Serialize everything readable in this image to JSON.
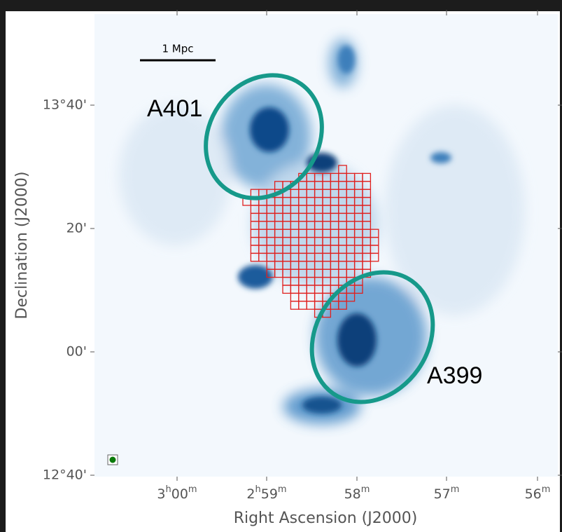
{
  "figure": {
    "scale_bar_label": "1 Mpc",
    "cluster_labels": [
      "A401",
      "A399"
    ],
    "x_axis_label": "Right Ascension (J2000)",
    "y_axis_label": "Declination (J2000)",
    "x_ticks": [
      [
        {
          "text": "3"
        },
        {
          "text": "h",
          "sup": true
        },
        {
          "text": "00"
        },
        {
          "text": "m",
          "sup": true
        }
      ],
      [
        {
          "text": "2"
        },
        {
          "text": "h",
          "sup": true
        },
        {
          "text": "59"
        },
        {
          "text": "m",
          "sup": true
        }
      ],
      [
        {
          "text": "58"
        },
        {
          "text": "m",
          "sup": true
        }
      ],
      [
        {
          "text": "57"
        },
        {
          "text": "m",
          "sup": true
        }
      ],
      [
        {
          "text": "56"
        },
        {
          "text": "m",
          "sup": true
        }
      ]
    ],
    "y_ticks": [
      "13°40'",
      "20'",
      "00'",
      "12°40'"
    ]
  }
}
